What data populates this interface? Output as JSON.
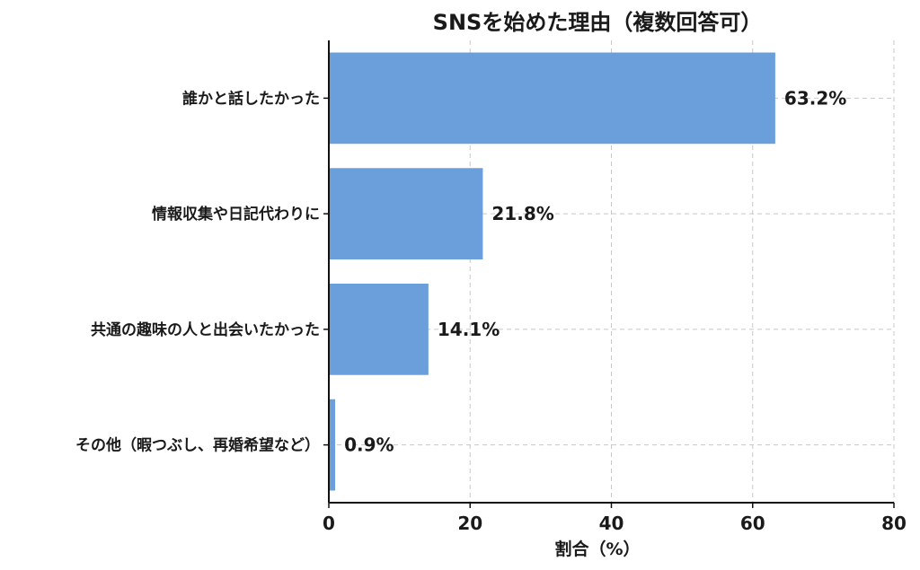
{
  "chart_data": {
    "type": "bar",
    "orientation": "horizontal",
    "title": "SNSを始めた理由（複数回答可）",
    "xlabel": "割合（%）",
    "ylabel": "",
    "categories": [
      "誰かと話したかった",
      "情報収集や日記代わりに",
      "共通の趣味の人と出会いたかった",
      "その他（暇つぶし、再婚希望など）"
    ],
    "values": [
      63.2,
      21.8,
      14.1,
      0.9
    ],
    "value_labels": [
      "63.2%",
      "21.8%",
      "14.1%",
      "0.9%"
    ],
    "xlim": [
      0,
      80
    ],
    "xticks": [
      0,
      20,
      40,
      60,
      80
    ],
    "xtick_labels": [
      "0",
      "20",
      "40",
      "60",
      "80"
    ],
    "grid": true,
    "bar_color": "#6a9fdb"
  }
}
